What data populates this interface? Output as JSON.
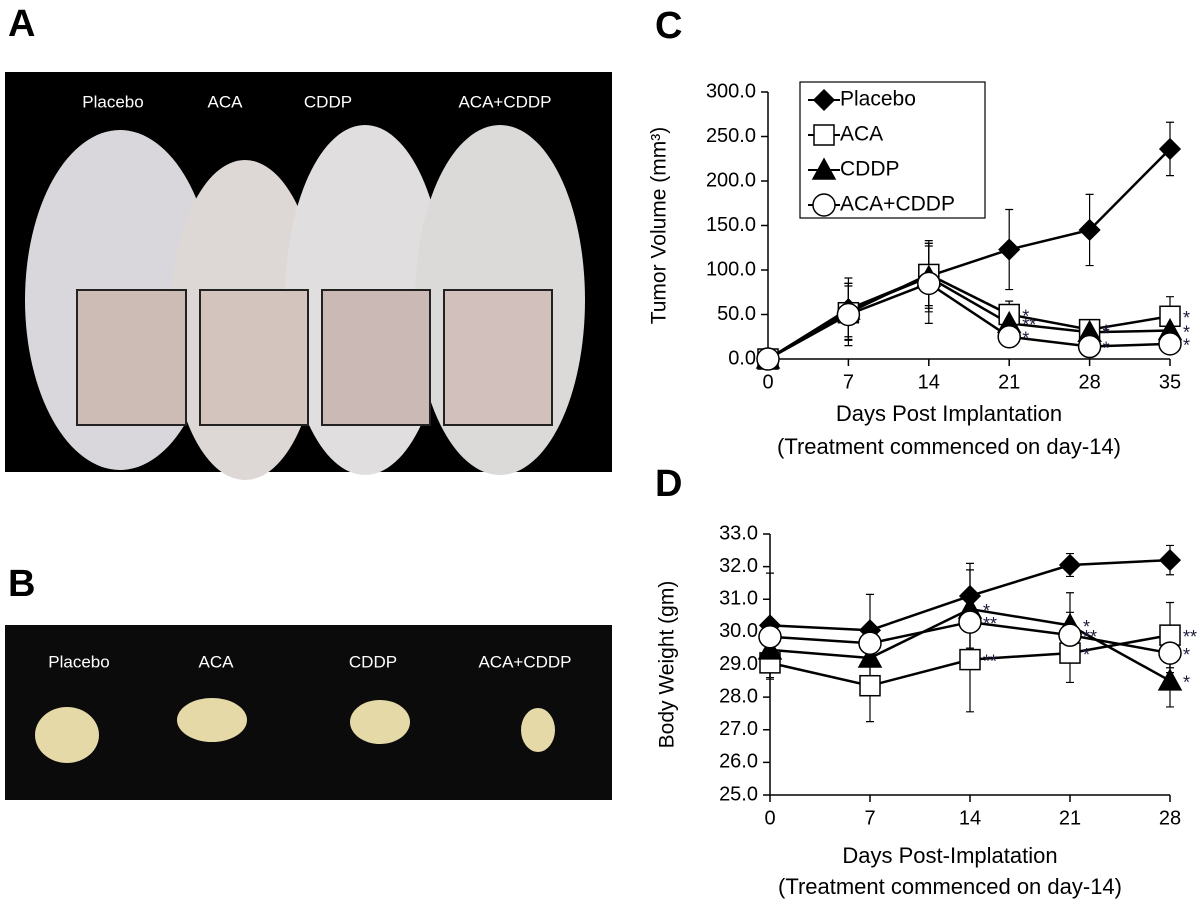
{
  "panels": {
    "A": {
      "label": "A",
      "groups": [
        "Placebo",
        "ACA",
        "CDDP",
        "ACA+CDDP"
      ]
    },
    "B": {
      "label": "B",
      "groups": [
        "Placebo",
        "ACA",
        "CDDP",
        "ACA+CDDP"
      ]
    }
  },
  "chart_data": [
    {
      "type": "line",
      "panel": "C",
      "ylabel": "Tumor Volume (mm³)",
      "xlabel": [
        "Days Post Implantation",
        "(Treatment commenced on day-14)"
      ],
      "x": [
        0,
        7,
        14,
        21,
        28,
        35
      ],
      "xlim": [
        0,
        35
      ],
      "xticks": [
        0,
        7,
        14,
        21,
        28,
        35
      ],
      "ylim": [
        0,
        300
      ],
      "yticks": [
        {
          "value": 0,
          "label": "0.0"
        },
        {
          "value": 50,
          "label": "50.0"
        },
        {
          "value": 100,
          "label": "100.0"
        },
        {
          "value": 150,
          "label": "150.0"
        },
        {
          "value": 200,
          "label": "200.0"
        },
        {
          "value": 250,
          "label": "250.0"
        },
        {
          "value": 300,
          "label": "300.0"
        }
      ],
      "grid": false,
      "legend": "upper-left",
      "series": [
        {
          "name": "Placebo",
          "color": "#000000",
          "marker": "diamond",
          "fill": "#000000",
          "values": [
            0,
            56,
            93,
            123,
            145,
            236
          ],
          "errors": [
            0,
            35,
            40,
            45,
            40,
            30
          ],
          "significance": [
            null,
            null,
            null,
            null,
            null,
            null
          ]
        },
        {
          "name": "ACA",
          "color": "#000000",
          "marker": "square",
          "fill": "#ffffff",
          "values": [
            0,
            52,
            95,
            50,
            33,
            48
          ],
          "errors": [
            0,
            30,
            35,
            15,
            8,
            22
          ],
          "significance": [
            null,
            null,
            null,
            "*",
            "*",
            "*"
          ]
        },
        {
          "name": "CDDP",
          "color": "#000000",
          "marker": "triangle",
          "fill": "#000000",
          "values": [
            0,
            55,
            92,
            40,
            30,
            32
          ],
          "errors": [
            0,
            30,
            35,
            15,
            8,
            10
          ],
          "significance": [
            null,
            null,
            null,
            "**",
            "*",
            "*"
          ]
        },
        {
          "name": "ACA+CDDP",
          "color": "#000000",
          "marker": "circle",
          "fill": "#ffffff",
          "values": [
            0,
            50,
            85,
            25,
            14,
            17
          ],
          "errors": [
            0,
            35,
            45,
            12,
            8,
            10
          ],
          "significance": [
            null,
            null,
            null,
            "*",
            "*",
            "*"
          ]
        }
      ]
    },
    {
      "type": "line",
      "panel": "D",
      "ylabel": "Body Weight (gm)",
      "xlabel": [
        "Days Post-Implatation",
        "(Treatment commenced on day-14)"
      ],
      "x": [
        0,
        7,
        14,
        21,
        28
      ],
      "xlim": [
        0,
        28
      ],
      "xticks": [
        0,
        7,
        14,
        21,
        28
      ],
      "ylim": [
        25,
        33
      ],
      "yticks": [
        {
          "value": 25,
          "label": "25.0"
        },
        {
          "value": 26,
          "label": "26.0"
        },
        {
          "value": 27,
          "label": "27.0"
        },
        {
          "value": 28,
          "label": "28.0"
        },
        {
          "value": 29,
          "label": "29.0"
        },
        {
          "value": 30,
          "label": "30.0"
        },
        {
          "value": 31,
          "label": "31.0"
        },
        {
          "value": 32,
          "label": "32.0"
        },
        {
          "value": 33,
          "label": "33.0"
        }
      ],
      "grid": false,
      "series": [
        {
          "color": "#000000",
          "marker": "diamond",
          "fill": "#000000",
          "values": [
            30.2,
            30.05,
            31.1,
            32.05,
            32.2
          ],
          "errors": [
            1.6,
            1.1,
            1.0,
            0.35,
            0.45
          ],
          "significance": [
            null,
            null,
            null,
            null,
            null
          ]
        },
        {
          "color": "#000000",
          "marker": "square",
          "fill": "#ffffff",
          "values": [
            29.05,
            28.35,
            29.15,
            29.35,
            29.9
          ],
          "errors": [
            0.5,
            1.1,
            1.6,
            0.9,
            1.0
          ],
          "significance": [
            null,
            null,
            "**",
            "*",
            "**"
          ]
        },
        {
          "color": "#000000",
          "marker": "triangle",
          "fill": "#000000",
          "values": [
            29.45,
            29.2,
            30.7,
            30.2,
            28.5
          ],
          "errors": [
            0.6,
            0.8,
            1.2,
            1.0,
            0.8
          ],
          "significance": [
            null,
            null,
            "*",
            "*",
            "*"
          ]
        },
        {
          "color": "#000000",
          "marker": "circle",
          "fill": "#ffffff",
          "values": [
            29.85,
            29.65,
            30.3,
            29.9,
            29.35
          ],
          "errors": [
            0.5,
            0.5,
            0.8,
            0.7,
            0.6
          ],
          "significance": [
            null,
            null,
            "**",
            "**",
            "*"
          ]
        }
      ]
    }
  ]
}
